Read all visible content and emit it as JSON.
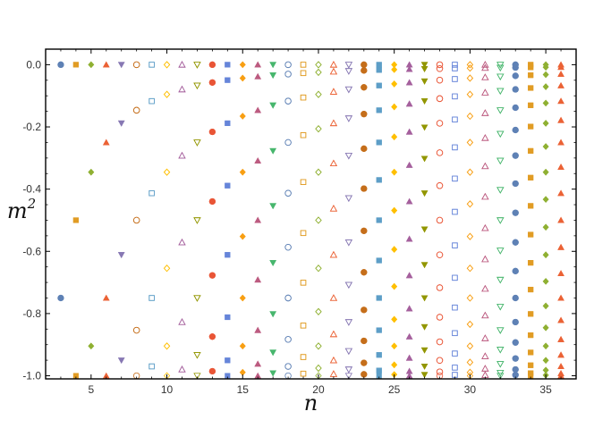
{
  "chart_data": {
    "type": "scatter",
    "title": "",
    "xlabel": "n",
    "ylabel_base": "m",
    "ylabel_sup": "2",
    "xlim": [
      2,
      37
    ],
    "ylim": [
      -1.01,
      0.05
    ],
    "xticks": [
      5,
      10,
      15,
      20,
      25,
      30,
      35
    ],
    "xtick_labels": [
      "5",
      "10",
      "15",
      "20",
      "25",
      "30",
      "35"
    ],
    "yticks": [
      0,
      -0.2,
      -0.4,
      -0.6,
      -0.8,
      -1.0
    ],
    "ytick_labels": [
      "0.0",
      "-0.2",
      "-0.4",
      "-0.6",
      "-0.8",
      "-1.0"
    ],
    "grid": false,
    "legend": "none",
    "series_rule": "for each n from 3 to 36, points at m^2 = -sin^2(pi*k/n), k = 0..n",
    "n_values": [
      3,
      4,
      5,
      6,
      7,
      8,
      9,
      10,
      11,
      12,
      13,
      14,
      15,
      16,
      17,
      18,
      19,
      20,
      21,
      22,
      23,
      24,
      25,
      26,
      27,
      28,
      29,
      30,
      31,
      32,
      33,
      34,
      35,
      36
    ],
    "palette": [
      "#5E81B5",
      "#E19C24",
      "#8FB032",
      "#EB6235",
      "#8778B3",
      "#C56E1A",
      "#5D9EC7",
      "#FFBF00",
      "#A5609D",
      "#929600",
      "#E95536",
      "#6685D9",
      "#F89F13",
      "#BC5B80",
      "#47B66D"
    ],
    "marker_cycle": [
      "circle-filled",
      "square-filled",
      "diamond-filled",
      "triangle-up-filled",
      "triangle-down-filled",
      "circle-open",
      "square-open",
      "diamond-open",
      "triangle-up-open",
      "triangle-down-open"
    ]
  }
}
